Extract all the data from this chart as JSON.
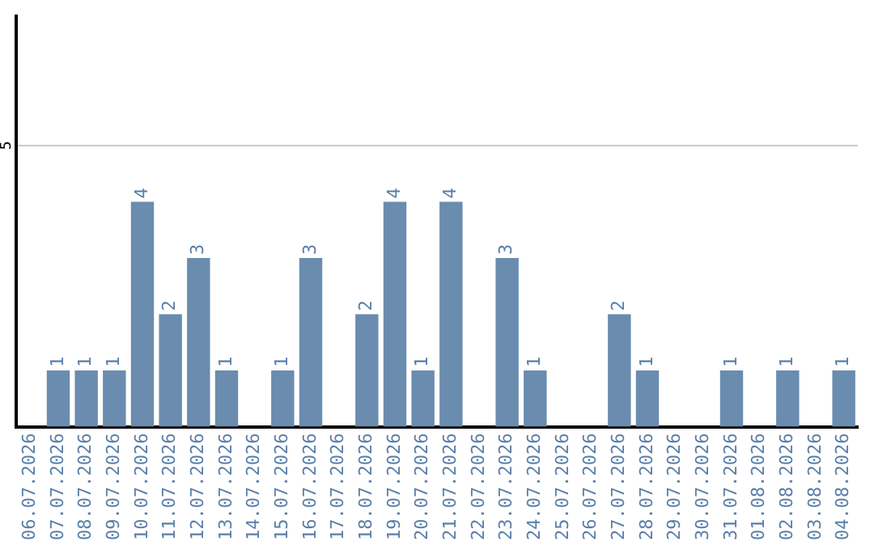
{
  "chart_data": {
    "type": "bar",
    "categories": [
      "06.07.2026",
      "07.07.2026",
      "08.07.2026",
      "09.07.2026",
      "10.07.2026",
      "11.07.2026",
      "12.07.2026",
      "13.07.2026",
      "14.07.2026",
      "15.07.2026",
      "16.07.2026",
      "17.07.2026",
      "18.07.2026",
      "19.07.2026",
      "20.07.2026",
      "21.07.2026",
      "22.07.2026",
      "23.07.2026",
      "24.07.2026",
      "25.07.2026",
      "26.07.2026",
      "27.07.2026",
      "28.07.2026",
      "29.07.2026",
      "30.07.2026",
      "31.07.2026",
      "01.08.2026",
      "02.08.2026",
      "03.08.2026",
      "04.08.2026"
    ],
    "values": [
      0,
      1,
      1,
      1,
      4,
      2,
      3,
      1,
      0,
      1,
      3,
      0,
      2,
      4,
      1,
      4,
      0,
      3,
      1,
      0,
      0,
      2,
      1,
      0,
      0,
      1,
      0,
      1,
      0,
      1
    ],
    "value_labels": [
      null,
      "1",
      "1",
      "1",
      "4",
      "2",
      "3",
      "1",
      null,
      "1",
      "3",
      null,
      "2",
      "4",
      "1",
      "4",
      null,
      "3",
      "1",
      null,
      null,
      "2",
      "1",
      null,
      null,
      "1",
      null,
      "1",
      null,
      "1"
    ],
    "color": "#6a8caf",
    "ylim": [
      0,
      7.3
    ],
    "yticks": [
      5
    ],
    "grid": "y",
    "legend": false
  }
}
